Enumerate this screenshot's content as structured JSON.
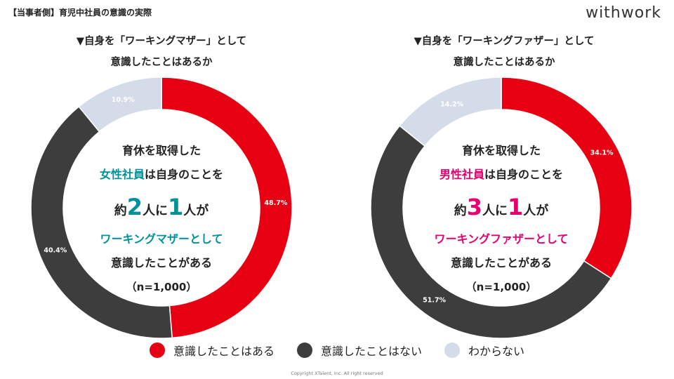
{
  "header": {
    "title": "【当事者側】育児中社員の意識の実際",
    "logo": "withwork"
  },
  "colors": {
    "conscious": "#e60012",
    "not_conscious": "#3d3d3d",
    "unknown": "#d3dce8",
    "accent_teal": "#00919a",
    "accent_pink": "#e4006e"
  },
  "chart_data": [
    {
      "type": "pie",
      "title_line1": "▼自身を「ワーキングマザー」として",
      "title_line2": "意識したことはあるか",
      "categories": [
        "意識したことはある",
        "意識したことはない",
        "わからない"
      ],
      "values": [
        48.7,
        40.4,
        10.9
      ],
      "labels": [
        "48.7%",
        "40.4%",
        "10.9%"
      ],
      "legend": "bottom"
    },
    {
      "type": "pie",
      "title_line1": "▼自身を「ワーキングファザー」として",
      "title_line2": "意識したことはあるか",
      "categories": [
        "意識したことはある",
        "意識したことはない",
        "わからない"
      ],
      "values": [
        34.1,
        51.7,
        14.2
      ],
      "labels": [
        "34.1%",
        "51.7%",
        "14.2%"
      ],
      "legend": "bottom"
    }
  ],
  "left_center": {
    "l1": "育休を取得した",
    "l2a": "女性社員",
    "l2b": "は自身のことを",
    "l3a": "約",
    "l3b": "2",
    "l3c": "人に",
    "l3d": "1",
    "l3e": "人が",
    "l4": "ワーキングマザーとして",
    "l5": "意識したことがある",
    "l6": "（n=1,000）"
  },
  "right_center": {
    "l1": "育休を取得した",
    "l2a": "男性社員",
    "l2b": "は自身のことを",
    "l3a": "約",
    "l3b": "3",
    "l3c": "人に",
    "l3d": "1",
    "l3e": "人が",
    "l4": "ワーキングファザーとして",
    "l5": "意識したことがある",
    "l6": "（n=1,000）"
  },
  "legend": {
    "items": [
      "意識したことはある",
      "意識したことはない",
      "わからない"
    ]
  },
  "copyright": "Copyright XTalent, Inc. All right reserved"
}
